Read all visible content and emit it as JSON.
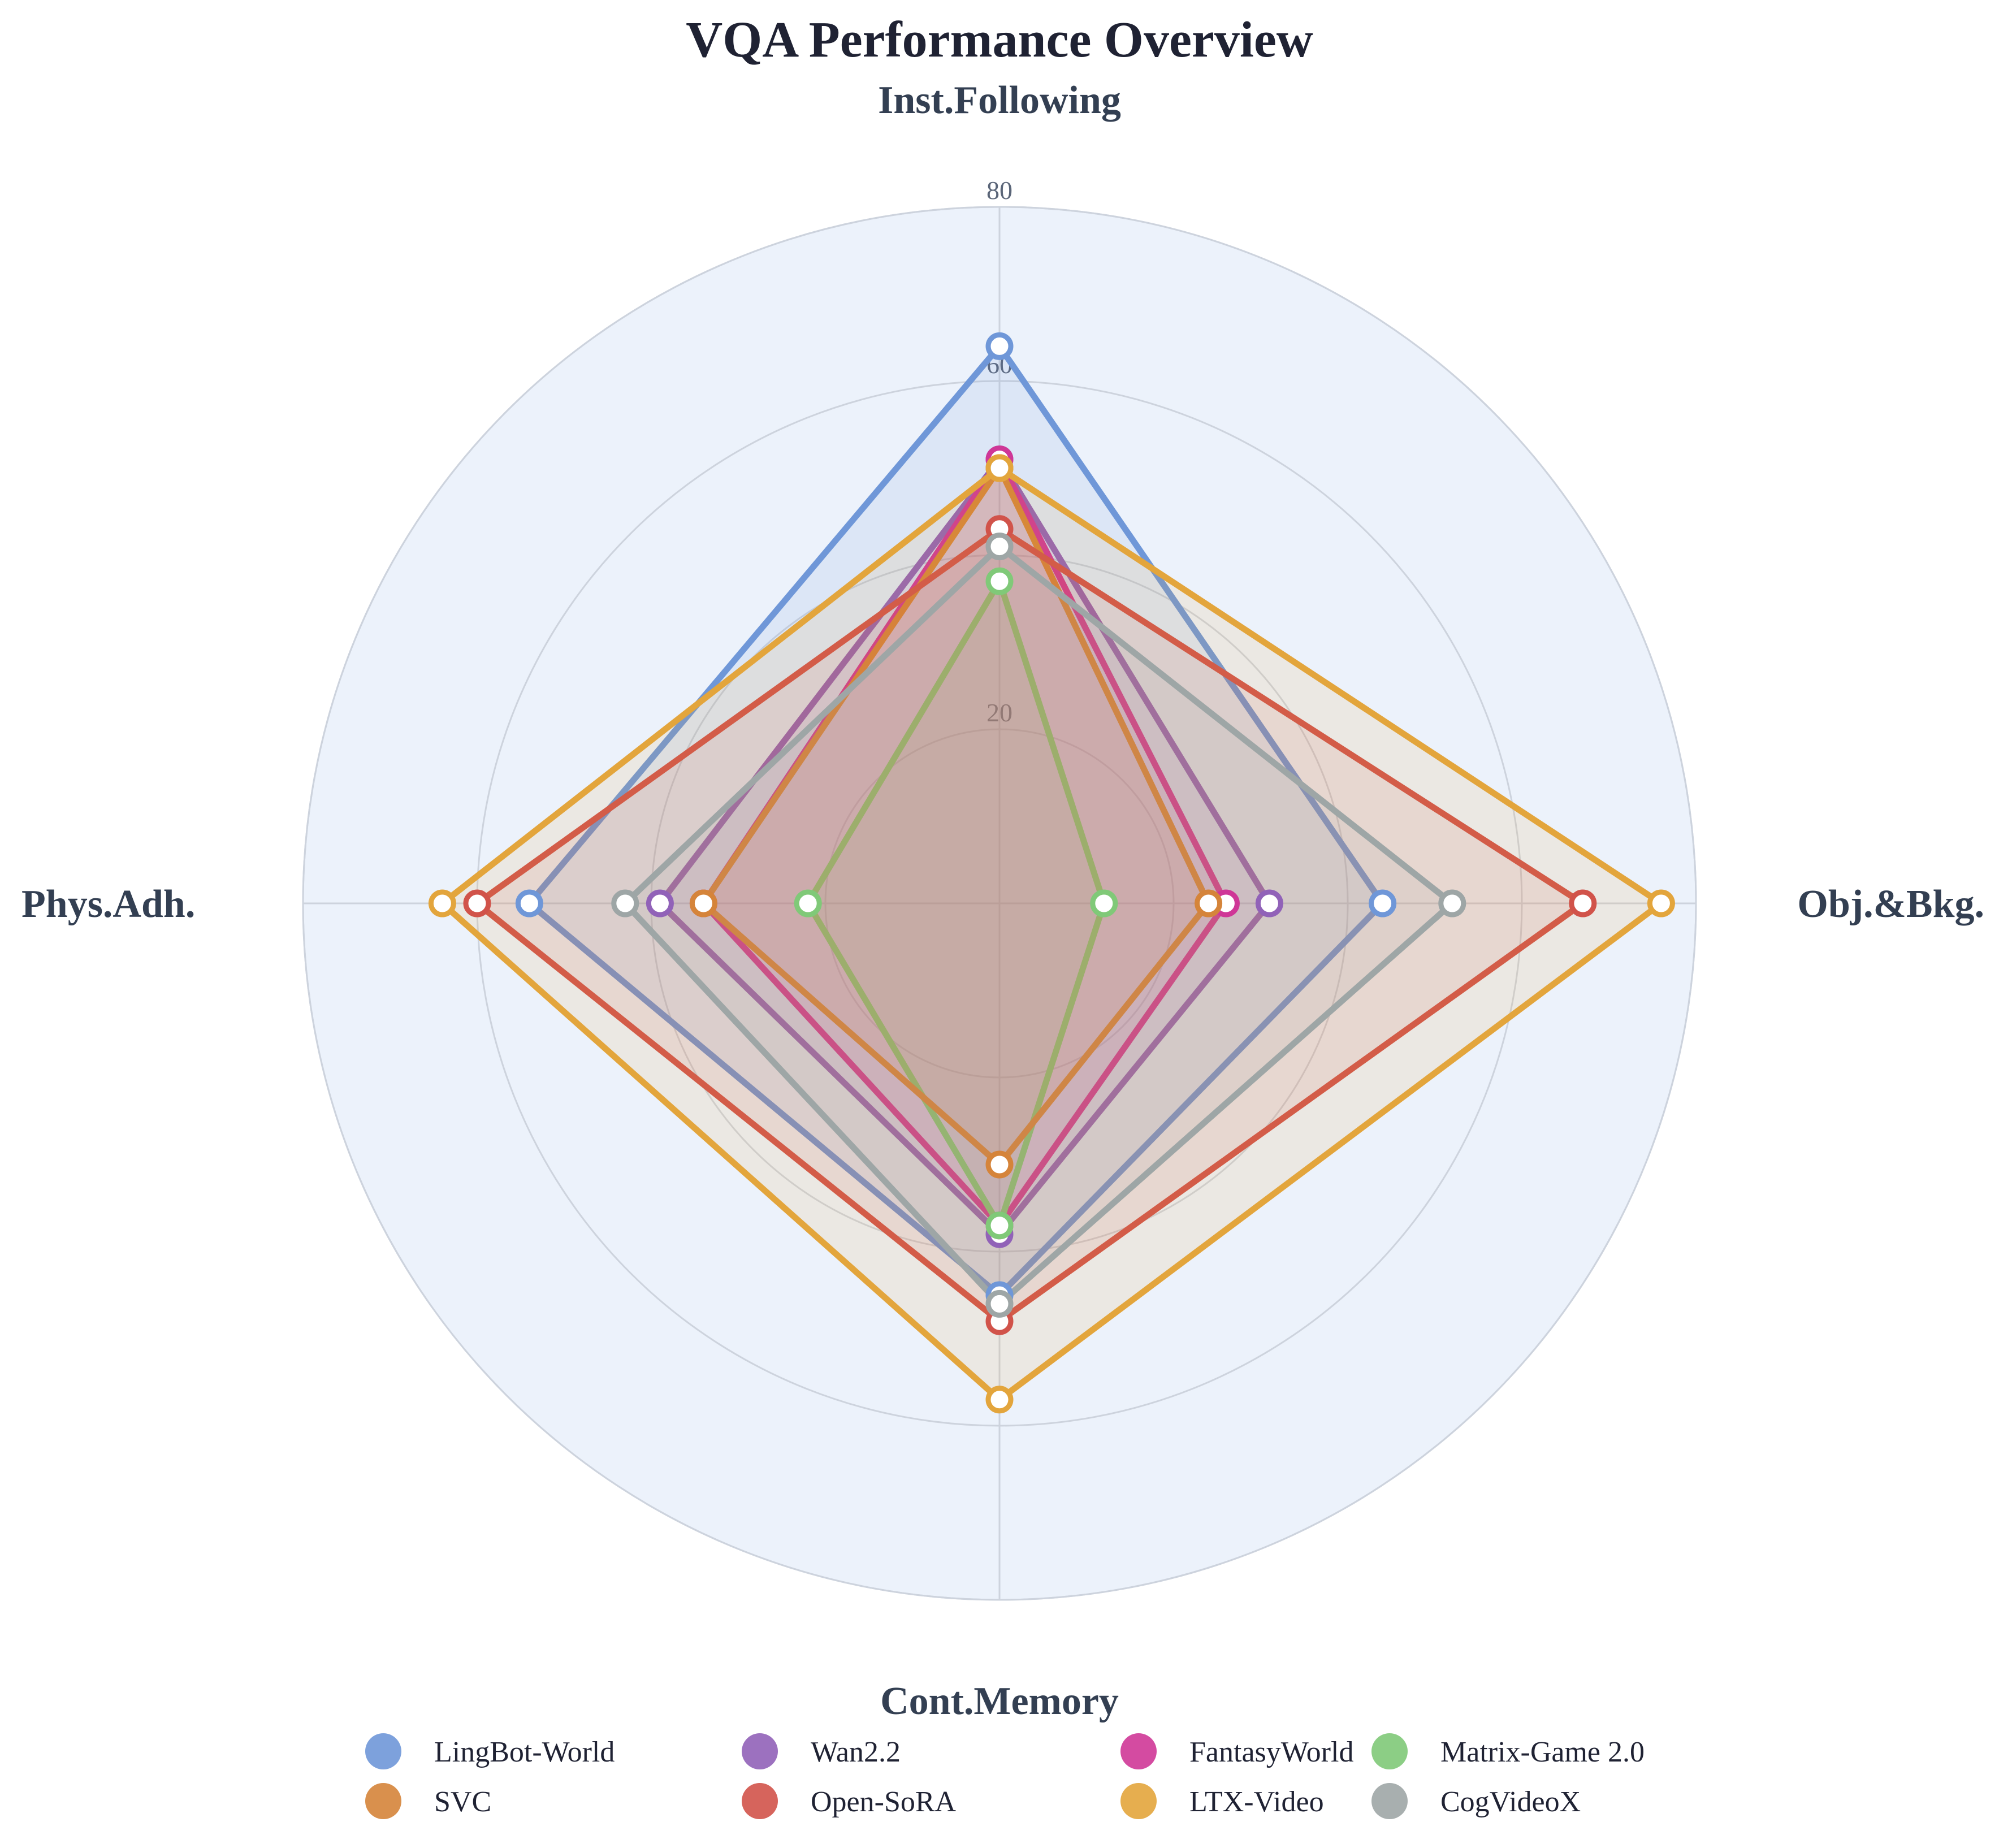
{
  "chart_data": {
    "type": "radar",
    "title": "VQA Performance Overview",
    "axes": [
      "Inst.Following",
      "Obj.&Bkg.",
      "Cont.Memory",
      "Phys.Adh."
    ],
    "radial_range": [
      0,
      80
    ],
    "ticks": [
      20,
      40,
      60,
      80
    ],
    "tick_labels": [
      "20",
      "40",
      "60",
      "80"
    ],
    "grid": true,
    "legend_position": "bottom",
    "series": [
      {
        "name": "LingBot-World",
        "color": "#6f97d8",
        "values": [
          64,
          44,
          45,
          54
        ]
      },
      {
        "name": "Wan2.2",
        "color": "#9162b8",
        "values": [
          51,
          31,
          38,
          39
        ]
      },
      {
        "name": "FantasyWorld",
        "color": "#cf3797",
        "values": [
          51,
          26,
          37,
          34
        ]
      },
      {
        "name": "Matrix-Game 2.0",
        "color": "#80c978",
        "values": [
          37,
          12,
          37,
          22
        ]
      },
      {
        "name": "SVC",
        "color": "#d5843a",
        "values": [
          50,
          24,
          30,
          34
        ]
      },
      {
        "name": "Open-SoRA",
        "color": "#d1534a",
        "values": [
          43,
          67,
          48,
          60
        ]
      },
      {
        "name": "LTX-Video",
        "color": "#e3a53c",
        "values": [
          50,
          76,
          57,
          64
        ]
      },
      {
        "name": "CogVideoX",
        "color": "#9ea6a6",
        "values": [
          41,
          52,
          46,
          43
        ]
      }
    ]
  }
}
